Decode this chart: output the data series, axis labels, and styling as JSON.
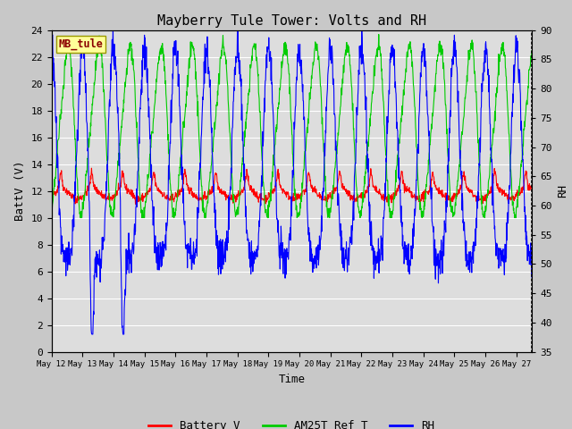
{
  "title": "Mayberry Tule Tower: Volts and RH",
  "xlabel": "Time",
  "ylabel_left": "BattV (V)",
  "ylabel_right": "RH",
  "ylim_left": [
    0,
    24
  ],
  "ylim_right": [
    35,
    90
  ],
  "xtick_labels": [
    "May 12",
    "May 13",
    "May 14",
    "May 15",
    "May 16",
    "May 17",
    "May 18",
    "May 19",
    "May 20",
    "May 21",
    "May 22",
    "May 23",
    "May 24",
    "May 25",
    "May 26",
    "May 27"
  ],
  "yticks_left": [
    0,
    2,
    4,
    6,
    8,
    10,
    12,
    14,
    16,
    18,
    20,
    22,
    24
  ],
  "yticks_right": [
    35,
    40,
    45,
    50,
    55,
    60,
    65,
    70,
    75,
    80,
    85,
    90
  ],
  "plot_bg_color": "#dddddd",
  "fig_bg_color": "#c8c8c8",
  "station_label": "MB_tule",
  "station_label_color": "#8b0000",
  "station_box_facecolor": "#ffff99",
  "station_box_edgecolor": "#999900",
  "legend_items": [
    "Battery V",
    "AM25T Ref T",
    "RH"
  ],
  "legend_colors": [
    "#ff0000",
    "#00cc00",
    "#0000ff"
  ],
  "line_colors": {
    "battery": "#ff0000",
    "am25t": "#00cc00",
    "rh": "#0000ff"
  },
  "font_family": "monospace",
  "title_fontsize": 11,
  "axis_label_fontsize": 9,
  "tick_fontsize": 8,
  "legend_fontsize": 9
}
